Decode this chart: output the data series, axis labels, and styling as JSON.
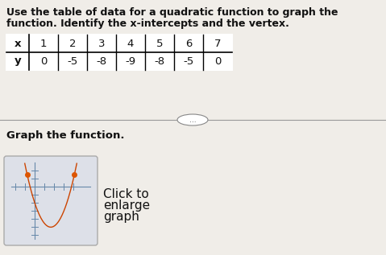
{
  "title_line1": "Use the table of data for a quadratic function to graph the",
  "title_line2": "function. Identify the x-intercepts and the vertex.",
  "x_values": [
    1,
    2,
    3,
    4,
    5,
    6,
    7
  ],
  "y_values": [
    0,
    -5,
    -8,
    -9,
    -8,
    -5,
    0
  ],
  "x_label": "x",
  "y_label": "y",
  "section_label": "Graph the function.",
  "click_line1": "Click to",
  "click_line2": "enlarge",
  "click_line3": "graph",
  "dots_text": "...",
  "bg_color": "#f0ede8",
  "table_bg": "#ffffff",
  "text_color": "#111111",
  "title_fontsize": 9.0,
  "table_fontsize": 9.5,
  "section_fontsize": 9.5,
  "click_fontsize": 11.0,
  "miniplot_bg": "#dde0e8",
  "miniplot_border": "#aaaaaa",
  "divider_color": "#999999",
  "parabola_color": "#cc4400",
  "dot_color": "#dd5500",
  "dot_size": 4,
  "axes_color": "#6688aa",
  "tick_color": "#6688aa"
}
